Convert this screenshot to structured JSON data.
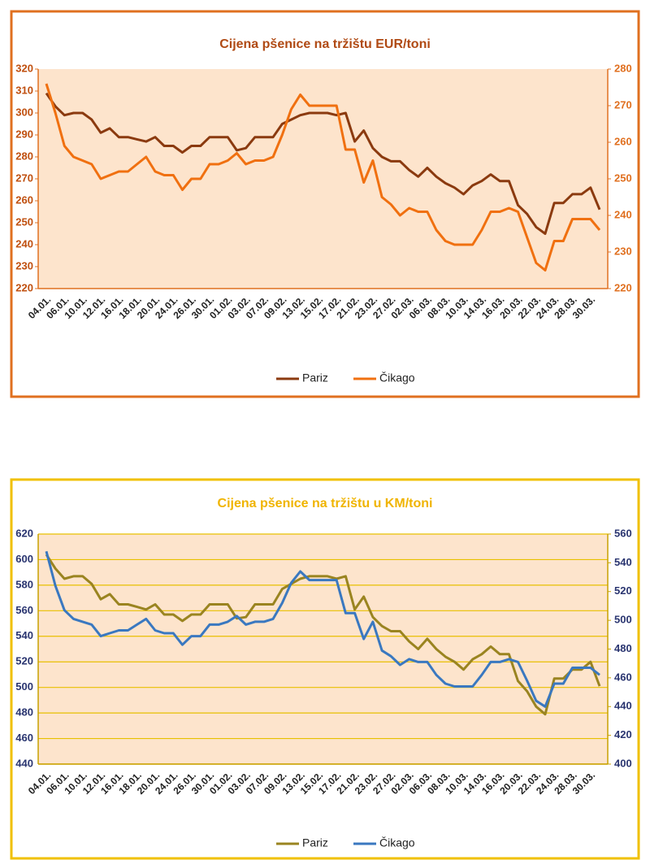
{
  "chart_data": [
    {
      "type": "line",
      "title": "Cijena pšenice na tržištu EUR/toni",
      "categories": [
        "04.01.",
        null,
        "06.01.",
        null,
        "10.01.",
        null,
        "12.01.",
        null,
        "16.01.",
        null,
        "18.01.",
        null,
        "20.01.",
        null,
        "24.01.",
        null,
        "26.01.",
        null,
        "30.01.",
        null,
        "01.02.",
        null,
        "03.02.",
        null,
        "07.02.",
        null,
        "09.02.",
        null,
        "13.02.",
        null,
        "15.02.",
        null,
        "17.02.",
        null,
        "21.02.",
        null,
        "23.02.",
        null,
        "27.02.",
        null,
        "02.03.",
        null,
        "06.03.",
        null,
        "08.03.",
        null,
        "10.03.",
        null,
        "14.03.",
        null,
        "16.03.",
        null,
        "20.03.",
        null,
        "22.03.",
        null,
        "24.03.",
        null,
        "28.03.",
        null,
        "30.03.",
        null
      ],
      "ylim": [
        220,
        320
      ],
      "yticks": [
        220,
        230,
        240,
        250,
        260,
        270,
        280,
        290,
        300,
        310,
        320
      ],
      "y2lim": [
        220,
        280
      ],
      "y2ticks": [
        220,
        230,
        240,
        250,
        260,
        270,
        280
      ],
      "grid": false,
      "legend": "bottom",
      "series": [
        {
          "name": "Pariz",
          "color": "#8b3a0f",
          "values": [
            309,
            303,
            299,
            300,
            300,
            297,
            291,
            293,
            289,
            289,
            288,
            287,
            289,
            285,
            285,
            282,
            285,
            285,
            289,
            289,
            289,
            283,
            284,
            289,
            289,
            289,
            295,
            297,
            299,
            300,
            300,
            300,
            299,
            300,
            287,
            292,
            284,
            280,
            278,
            278,
            274,
            271,
            275,
            271,
            268,
            266,
            263,
            267,
            269,
            272,
            269,
            269,
            258,
            254,
            248,
            245,
            259,
            259,
            263,
            263,
            266,
            256
          ]
        },
        {
          "name": "Čikago",
          "color": "#f07010",
          "axis": "y2",
          "values": [
            276,
            268,
            259,
            256,
            255,
            254,
            250,
            251,
            252,
            252,
            254,
            256,
            252,
            251,
            251,
            247,
            250,
            250,
            254,
            254,
            255,
            257,
            254,
            255,
            255,
            256,
            262,
            269,
            273,
            270,
            270,
            270,
            270,
            258,
            258,
            249,
            255,
            245,
            243,
            240,
            242,
            241,
            241,
            236,
            233,
            232,
            232,
            232,
            236,
            241,
            241,
            242,
            241,
            234,
            227,
            225,
            233,
            233,
            239,
            239,
            239,
            236
          ]
        }
      ]
    },
    {
      "type": "line",
      "title": "Cijena pšenice na tržištu u KM/toni",
      "categories": [
        "04.01.",
        null,
        "06.01.",
        null,
        "10.01.",
        null,
        "12.01.",
        null,
        "16.01.",
        null,
        "18.01.",
        null,
        "20.01.",
        null,
        "24.01.",
        null,
        "26.01.",
        null,
        "30.01.",
        null,
        "01.02.",
        null,
        "03.02.",
        null,
        "07.02.",
        null,
        "09.02.",
        null,
        "13.02.",
        null,
        "15.02.",
        null,
        "17.02.",
        null,
        "21.02.",
        null,
        "23.02.",
        null,
        "27.02.",
        null,
        "02.03.",
        null,
        "06.03.",
        null,
        "08.03.",
        null,
        "10.03.",
        null,
        "14.03.",
        null,
        "16.03.",
        null,
        "20.03.",
        null,
        "22.03.",
        null,
        "24.03.",
        null,
        "28.03.",
        null,
        "30.03.",
        null
      ],
      "ylim": [
        440,
        620
      ],
      "yticks": [
        440,
        460,
        480,
        500,
        520,
        540,
        560,
        580,
        600,
        620
      ],
      "y2lim": [
        400,
        560
      ],
      "y2ticks": [
        400,
        420,
        440,
        460,
        480,
        500,
        520,
        540,
        560
      ],
      "grid": true,
      "legend": "bottom",
      "series": [
        {
          "name": "Pariz",
          "color": "#9a8420",
          "values": [
            604,
            593,
            585,
            587,
            587,
            581,
            569,
            573,
            565,
            565,
            563,
            561,
            565,
            557,
            557,
            552,
            557,
            557,
            565,
            565,
            565,
            554,
            555,
            565,
            565,
            565,
            577,
            581,
            585,
            587,
            587,
            587,
            585,
            587,
            561,
            571,
            555,
            548,
            544,
            544,
            536,
            530,
            538,
            530,
            524,
            520,
            514,
            522,
            526,
            532,
            526,
            526,
            505,
            497,
            485,
            479,
            507,
            507,
            514,
            514,
            520,
            501
          ]
        },
        {
          "name": "Čikago",
          "color": "#3a78c0",
          "axis": "y2",
          "values": [
            548,
            524,
            507,
            501,
            499,
            497,
            489,
            491,
            493,
            493,
            497,
            501,
            493,
            491,
            491,
            483,
            489,
            489,
            497,
            497,
            499,
            503,
            497,
            499,
            499,
            501,
            512,
            526,
            534,
            528,
            528,
            528,
            528,
            505,
            505,
            487,
            499,
            479,
            475,
            469,
            473,
            471,
            471,
            462,
            456,
            454,
            454,
            454,
            462,
            471,
            471,
            473,
            471,
            458,
            444,
            440,
            456,
            456,
            467,
            467,
            467,
            462
          ]
        }
      ]
    }
  ]
}
